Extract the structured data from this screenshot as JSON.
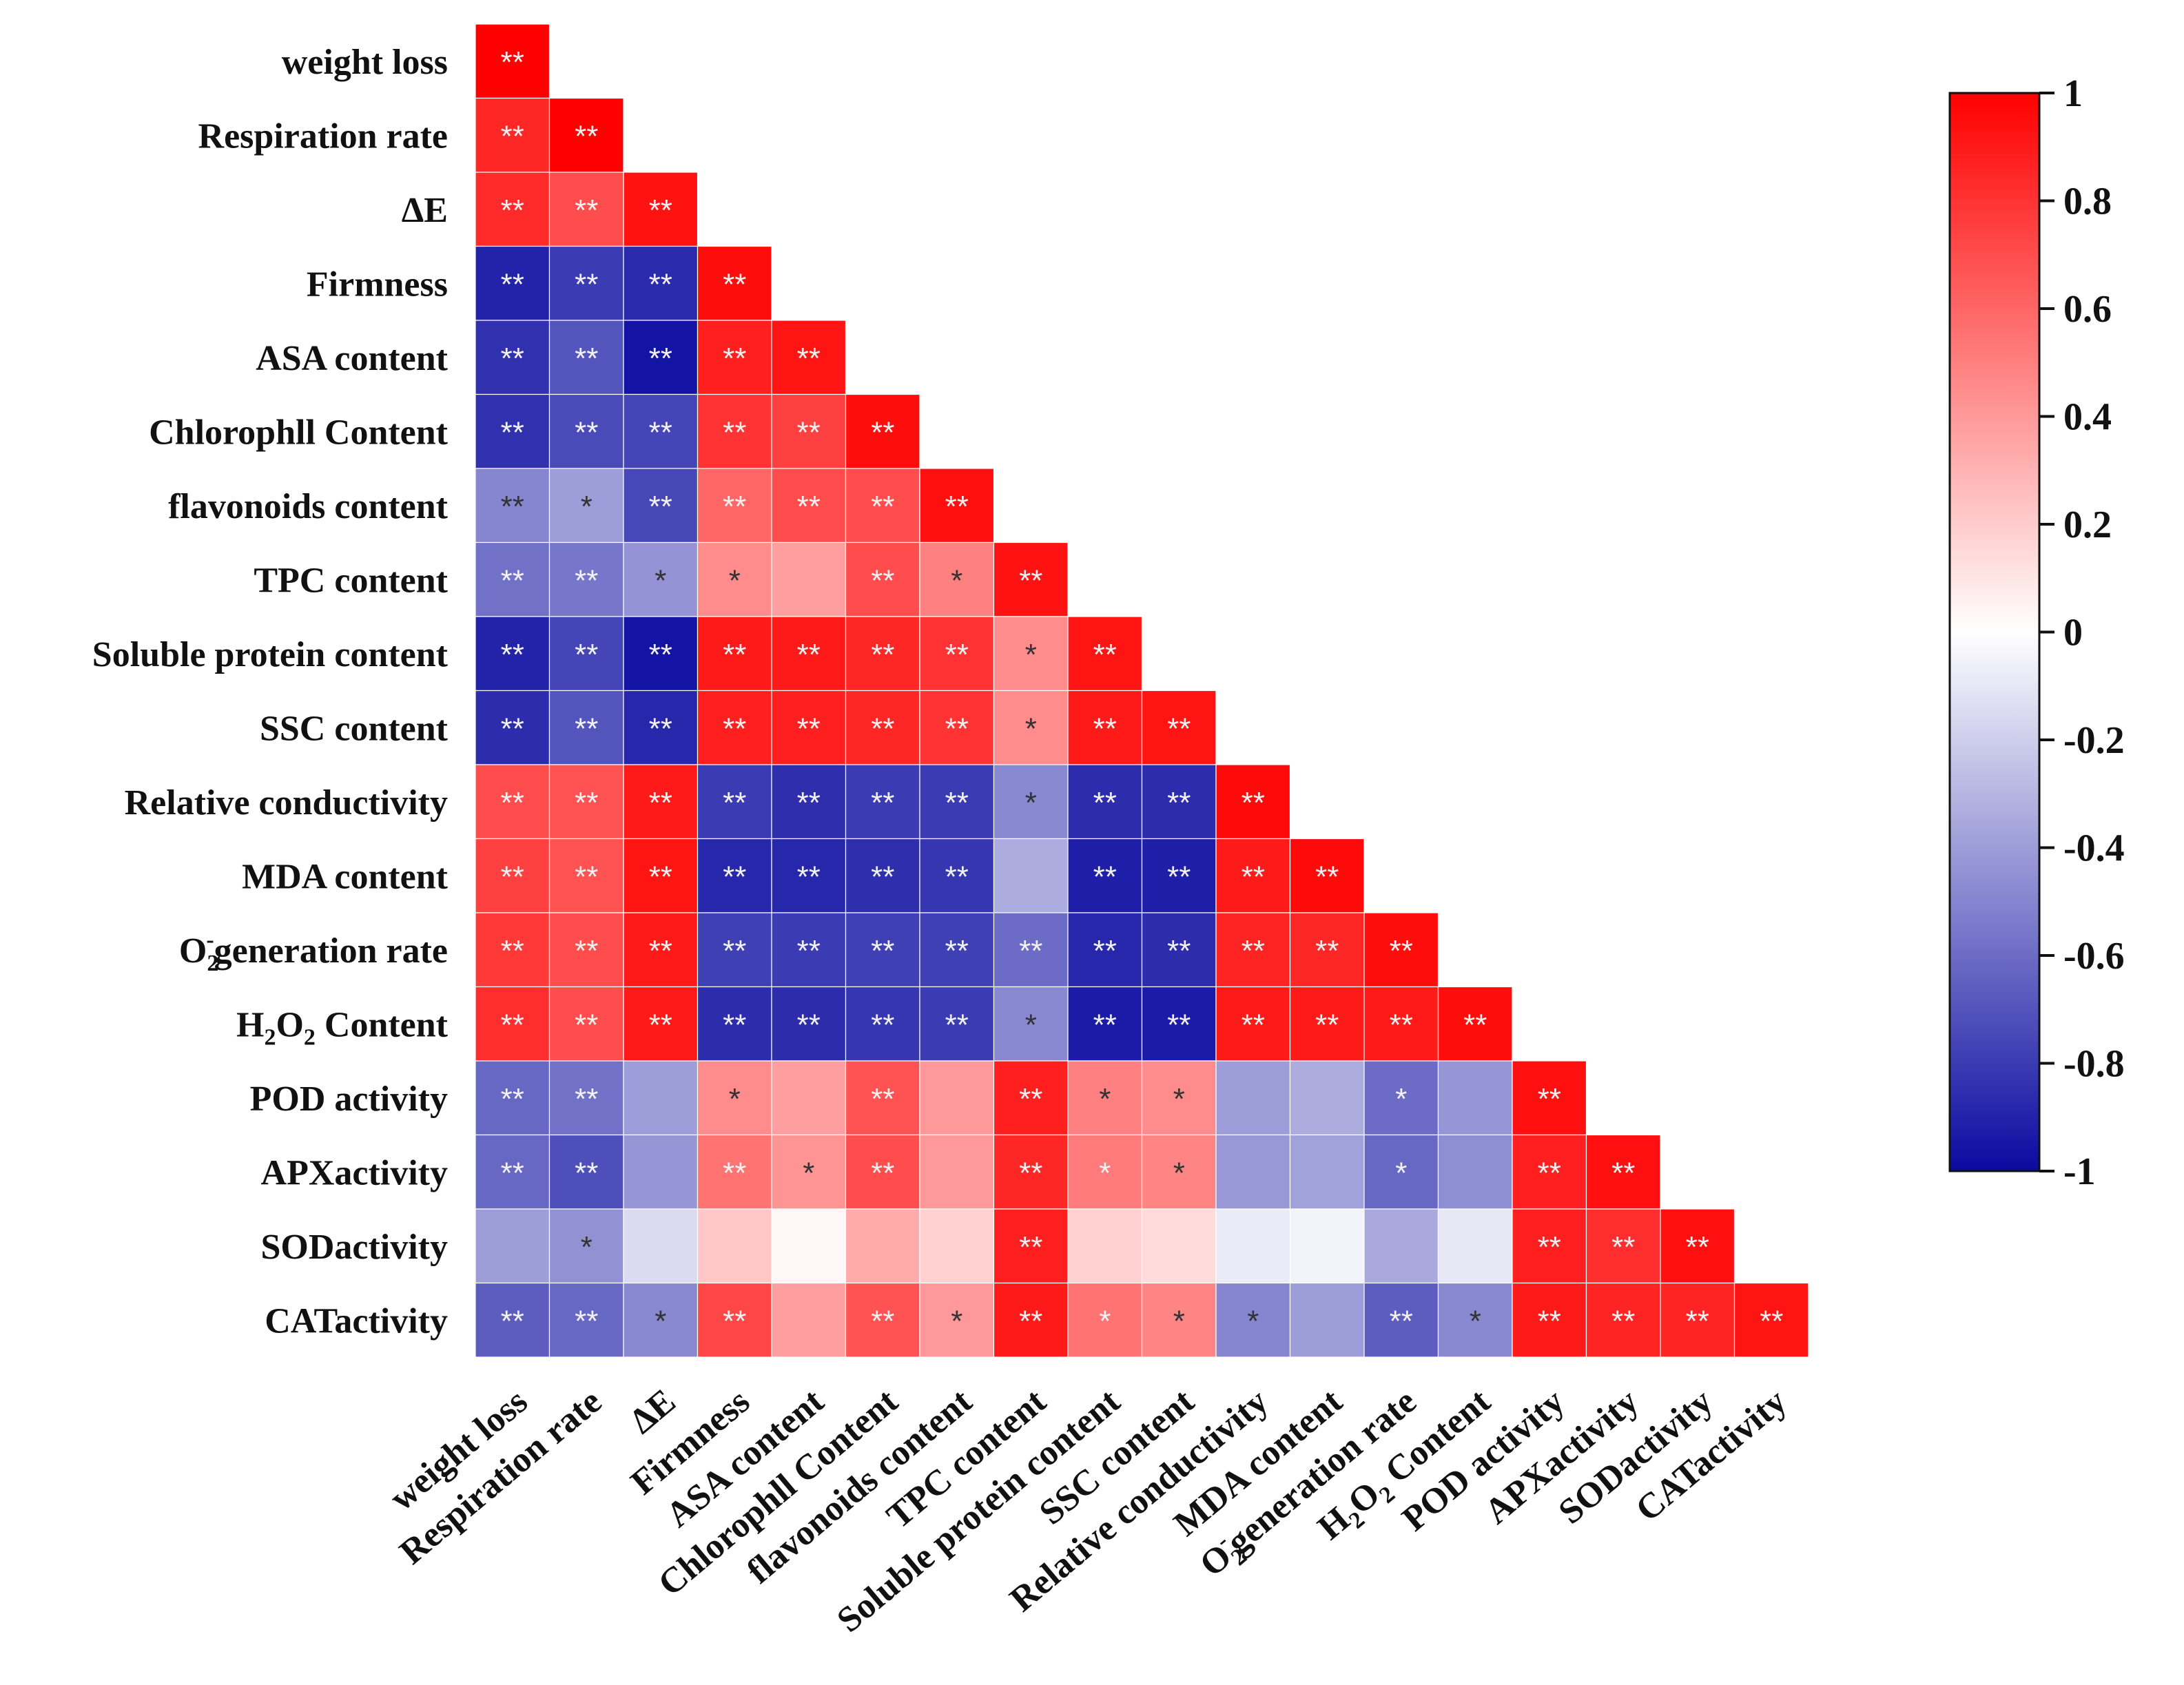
{
  "chart_data": {
    "type": "heatmap",
    "title": "",
    "xlabel": "",
    "ylabel": "",
    "layout": "lower-triangle",
    "labels": [
      "weight loss",
      "Respiration rate",
      "ΔE",
      "Firmness",
      "ASA content",
      "Chlorophll Content",
      "flavonoids content",
      "TPC content",
      "Soluble protein content",
      "SSC content",
      "Relative conductivity",
      "MDA content",
      "O2-generation rate",
      "H2O2 Content",
      "POD activity",
      "APXactivity",
      "SODactivity",
      "CATactivity"
    ],
    "values": [
      [
        1.0
      ],
      [
        0.85,
        1.0
      ],
      [
        0.83,
        0.7,
        0.93
      ],
      [
        -0.9,
        -0.8,
        -0.87,
        0.95
      ],
      [
        -0.84,
        -0.7,
        -0.96,
        0.88,
        0.92
      ],
      [
        -0.84,
        -0.74,
        -0.76,
        0.8,
        0.75,
        0.95
      ],
      [
        -0.5,
        -0.4,
        -0.75,
        0.6,
        0.7,
        0.7,
        0.94
      ],
      [
        -0.58,
        -0.56,
        -0.44,
        0.45,
        0.38,
        0.7,
        0.5,
        0.93
      ],
      [
        -0.9,
        -0.76,
        -0.96,
        0.9,
        0.9,
        0.85,
        0.8,
        0.45,
        0.92
      ],
      [
        -0.86,
        -0.7,
        -0.88,
        0.88,
        0.88,
        0.85,
        0.8,
        0.45,
        0.9,
        0.92
      ],
      [
        0.7,
        0.68,
        0.9,
        -0.8,
        -0.85,
        -0.8,
        -0.8,
        -0.48,
        -0.86,
        -0.86,
        0.96
      ],
      [
        0.75,
        0.68,
        0.92,
        -0.88,
        -0.88,
        -0.85,
        -0.82,
        -0.34,
        -0.92,
        -0.92,
        0.9,
        0.96
      ],
      [
        0.78,
        0.7,
        0.9,
        -0.78,
        -0.8,
        -0.78,
        -0.78,
        -0.6,
        -0.88,
        -0.86,
        0.86,
        0.85,
        0.95
      ],
      [
        0.82,
        0.7,
        0.9,
        -0.86,
        -0.86,
        -0.82,
        -0.8,
        -0.48,
        -0.93,
        -0.93,
        0.9,
        0.9,
        0.9,
        0.95
      ],
      [
        -0.62,
        -0.58,
        -0.4,
        0.45,
        0.38,
        0.68,
        0.4,
        0.88,
        0.5,
        0.45,
        -0.4,
        -0.34,
        -0.6,
        -0.43,
        0.94
      ],
      [
        -0.62,
        -0.72,
        -0.43,
        0.55,
        0.42,
        0.7,
        0.4,
        0.85,
        0.52,
        0.48,
        -0.42,
        -0.38,
        -0.62,
        -0.46,
        0.88,
        0.94
      ],
      [
        -0.4,
        -0.45,
        -0.15,
        0.22,
        0.03,
        0.33,
        0.18,
        0.88,
        0.18,
        0.14,
        -0.08,
        -0.05,
        -0.35,
        -0.1,
        0.88,
        0.82,
        0.94
      ],
      [
        -0.66,
        -0.62,
        -0.48,
        0.72,
        0.38,
        0.68,
        0.4,
        0.9,
        0.55,
        0.48,
        -0.5,
        -0.4,
        -0.66,
        -0.48,
        0.9,
        0.86,
        0.86,
        0.92
      ]
    ],
    "significance": [
      [
        "**"
      ],
      [
        "**",
        "**"
      ],
      [
        "**",
        "**",
        "**"
      ],
      [
        "**",
        "**",
        "**",
        "**"
      ],
      [
        "**",
        "**",
        "**",
        "**",
        "**"
      ],
      [
        "**",
        "**",
        "**",
        "**",
        "**",
        "**"
      ],
      [
        "**",
        "*",
        "**",
        "**",
        "**",
        "**",
        "**"
      ],
      [
        "**",
        "**",
        "*",
        "*",
        "",
        "**",
        "*",
        "**"
      ],
      [
        "**",
        "**",
        "**",
        "**",
        "**",
        "**",
        "**",
        "*",
        "**"
      ],
      [
        "**",
        "**",
        "**",
        "**",
        "**",
        "**",
        "**",
        "*",
        "**",
        "**"
      ],
      [
        "**",
        "**",
        "**",
        "**",
        "**",
        "**",
        "**",
        "*",
        "**",
        "**",
        "**"
      ],
      [
        "**",
        "**",
        "**",
        "**",
        "**",
        "**",
        "**",
        "",
        "**",
        "**",
        "**",
        "**"
      ],
      [
        "**",
        "**",
        "**",
        "**",
        "**",
        "**",
        "**",
        "**",
        "**",
        "**",
        "**",
        "**",
        "**"
      ],
      [
        "**",
        "**",
        "**",
        "**",
        "**",
        "**",
        "**",
        "*",
        "**",
        "**",
        "**",
        "**",
        "**",
        "**"
      ],
      [
        "**",
        "**",
        "",
        "*",
        "",
        "**",
        "",
        "**",
        "*",
        "*",
        "",
        "",
        "*",
        "",
        "**"
      ],
      [
        "**",
        "**",
        "",
        "**",
        "*",
        "**",
        "",
        "**",
        "*",
        "*",
        "",
        "",
        "*",
        "",
        "**",
        "**"
      ],
      [
        "",
        "*",
        "",
        "",
        "",
        "",
        "",
        "**",
        "",
        "",
        "",
        "",
        "",
        "",
        "**",
        "**",
        "**"
      ],
      [
        "**",
        "**",
        "*",
        "**",
        "",
        "**",
        "*",
        "**",
        "*",
        "*",
        "*",
        "",
        "**",
        "*",
        "**",
        "**",
        "**",
        "**"
      ]
    ],
    "colorbar": {
      "range": [
        -1,
        1
      ],
      "ticks": [
        "1",
        "0.8",
        "0.6",
        "0.4",
        "0.2",
        "0",
        "-0.2",
        "-0.4",
        "-0.6",
        "-0.8",
        "-1"
      ],
      "colors": {
        "min": "#0a0aa0",
        "mid": "#ffffff",
        "max": "#ff0000"
      }
    },
    "legend": "right"
  }
}
